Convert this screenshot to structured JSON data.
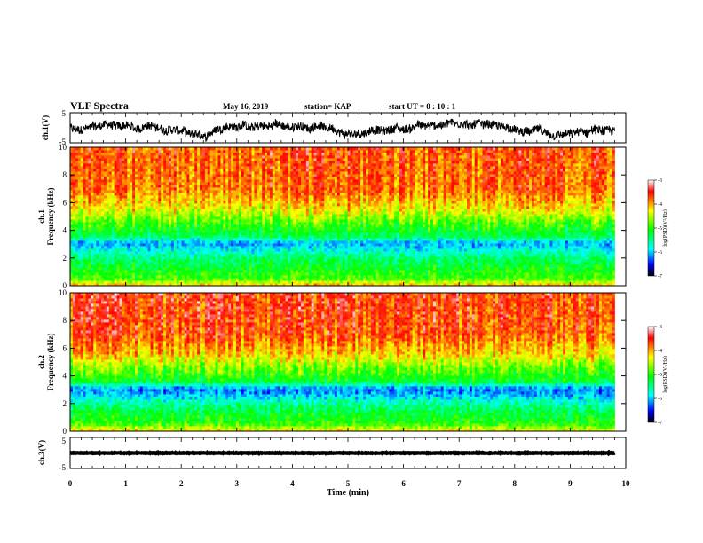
{
  "header": {
    "title": "VLF Spectra",
    "date": "May 16, 2019",
    "station": "station= KAP",
    "start": "start  UT =   0 : 10 : 1"
  },
  "colors": {
    "spectrogram_scale": [
      "#000000",
      "#0000ff",
      "#00ffff",
      "#00ff00",
      "#ffff00",
      "#ff0000",
      "#ffffff"
    ]
  },
  "chart_data": [
    {
      "type": "line",
      "name": "ch1-waveform",
      "ylabel": "ch.1(V)",
      "ylim": [
        -5,
        5
      ],
      "yticks": [
        "5",
        "-5"
      ],
      "xlim": [
        0,
        10
      ],
      "x_end": 9.8,
      "level": 0.0,
      "amplitude": 2.8
    },
    {
      "type": "heatmap",
      "name": "ch1-spectrogram",
      "ylabel": "ch.1",
      "ylabel2": "Frequency  (kHz)",
      "yticks": [
        "0",
        "2",
        "4",
        "6",
        "8",
        "10"
      ],
      "ylim": [
        0,
        10
      ],
      "xlim": [
        0,
        10
      ],
      "x_end": 9.8,
      "colorbar": {
        "label": "log(PSD)(V²/Hz)",
        "ticks": [
          "-3",
          "-4",
          "-5",
          "-6",
          "-7"
        ],
        "range": [
          -7,
          -3
        ]
      },
      "band_profile": [
        {
          "f": 0.0,
          "v": -4.0
        },
        {
          "f": 0.5,
          "v": -4.9
        },
        {
          "f": 1.2,
          "v": -5.1
        },
        {
          "f": 2.0,
          "v": -5.4
        },
        {
          "f": 2.6,
          "v": -5.8
        },
        {
          "f": 3.1,
          "v": -6.1
        },
        {
          "f": 3.6,
          "v": -5.3
        },
        {
          "f": 4.5,
          "v": -4.9
        },
        {
          "f": 5.5,
          "v": -4.3
        },
        {
          "f": 7.0,
          "v": -3.8
        },
        {
          "f": 10.0,
          "v": -3.7
        }
      ]
    },
    {
      "type": "heatmap",
      "name": "ch2-spectrogram",
      "ylabel": "ch.2",
      "ylabel2": "Frequency  (kHz)",
      "yticks": [
        "0",
        "2",
        "4",
        "6",
        "8",
        "10"
      ],
      "ylim": [
        0,
        10
      ],
      "xlim": [
        0,
        10
      ],
      "x_end": 9.8,
      "colorbar": {
        "label": "log(PSD)(V²/Hz)",
        "ticks": [
          "-3",
          "-4",
          "-5",
          "-6",
          "-7"
        ],
        "range": [
          -7,
          -3
        ]
      },
      "band_profile": [
        {
          "f": 0.0,
          "v": -4.2
        },
        {
          "f": 0.6,
          "v": -5.0
        },
        {
          "f": 1.5,
          "v": -5.3
        },
        {
          "f": 2.2,
          "v": -5.7
        },
        {
          "f": 2.7,
          "v": -6.1
        },
        {
          "f": 3.1,
          "v": -6.2
        },
        {
          "f": 3.6,
          "v": -5.2
        },
        {
          "f": 4.5,
          "v": -4.8
        },
        {
          "f": 5.5,
          "v": -4.2
        },
        {
          "f": 7.0,
          "v": -3.7
        },
        {
          "f": 10.0,
          "v": -3.6
        }
      ]
    },
    {
      "type": "line",
      "name": "ch3-waveform",
      "ylabel": "ch.3(V)",
      "ylim": [
        -5,
        5
      ],
      "yticks": [
        "5",
        "-5"
      ],
      "xlim": [
        0,
        10
      ],
      "x_end": 9.8,
      "level": 0.0,
      "amplitude": 0.2,
      "xlabel": "Time  (min)",
      "xticks": [
        "0",
        "1",
        "2",
        "3",
        "4",
        "5",
        "6",
        "7",
        "8",
        "9",
        "10"
      ]
    }
  ]
}
